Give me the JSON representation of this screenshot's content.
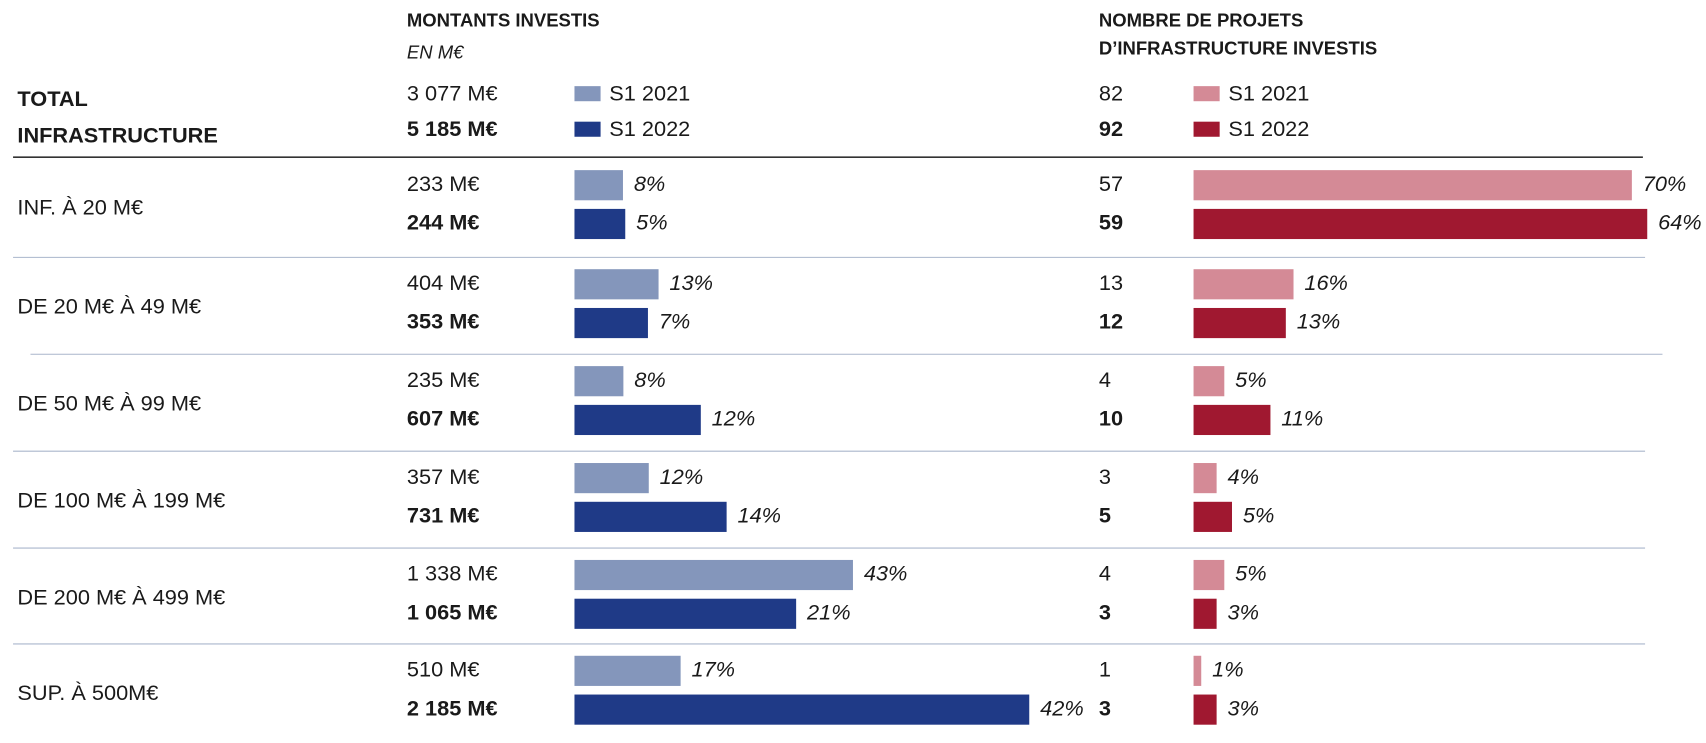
{
  "chart_data": [
    {
      "type": "bar",
      "orientation": "horizontal",
      "title": "MONTANTS INVESTIS",
      "subtitle": "EN M€",
      "row_header": [
        "TOTAL",
        "INFRASTRUCTURE"
      ],
      "categories": [
        "INF. À 20 M€",
        "DE 20 M€ À 49 M€",
        "DE 50 M€ À 99 M€",
        "DE 100 M€ À 199 M€",
        "DE 200 M€ À 499 M€",
        "SUP. À 500M€"
      ],
      "series": [
        {
          "name": "S1 2021",
          "color": "#8496bb",
          "total": "3 077 M€",
          "values": [
            233,
            404,
            235,
            357,
            1338,
            510
          ],
          "value_labels": [
            "233 M€",
            "404 M€",
            "235 M€",
            "357 M€",
            "1 338 M€",
            "510 M€"
          ],
          "shares": [
            "8%",
            "13%",
            "8%",
            "12%",
            "43%",
            "17%"
          ]
        },
        {
          "name": "S1 2022",
          "color": "#1f3a87",
          "total": "5 185 M€",
          "values": [
            244,
            353,
            607,
            731,
            1065,
            2185
          ],
          "value_labels": [
            "244 M€",
            "353 M€",
            "607 M€",
            "731 M€",
            "1 065 M€",
            "2 185 M€"
          ],
          "shares": [
            "5%",
            "7%",
            "12%",
            "14%",
            "21%",
            "42%"
          ]
        }
      ]
    },
    {
      "type": "bar",
      "orientation": "horizontal",
      "title": [
        "NOMBRE DE PROJETS",
        "D’INFRASTRUCTURE INVESTIS"
      ],
      "series": [
        {
          "name": "S1 2021",
          "color": "#d48a96",
          "total": 82,
          "values": [
            57,
            13,
            4,
            3,
            4,
            1
          ],
          "shares": [
            "70%",
            "16%",
            "5%",
            "4%",
            "5%",
            "1%"
          ]
        },
        {
          "name": "S1 2022",
          "color": "#a01830",
          "total": 92,
          "values": [
            59,
            12,
            10,
            5,
            3,
            3
          ],
          "shares": [
            "64%",
            "13%",
            "11%",
            "5%",
            "3%",
            "3%"
          ]
        }
      ]
    }
  ]
}
